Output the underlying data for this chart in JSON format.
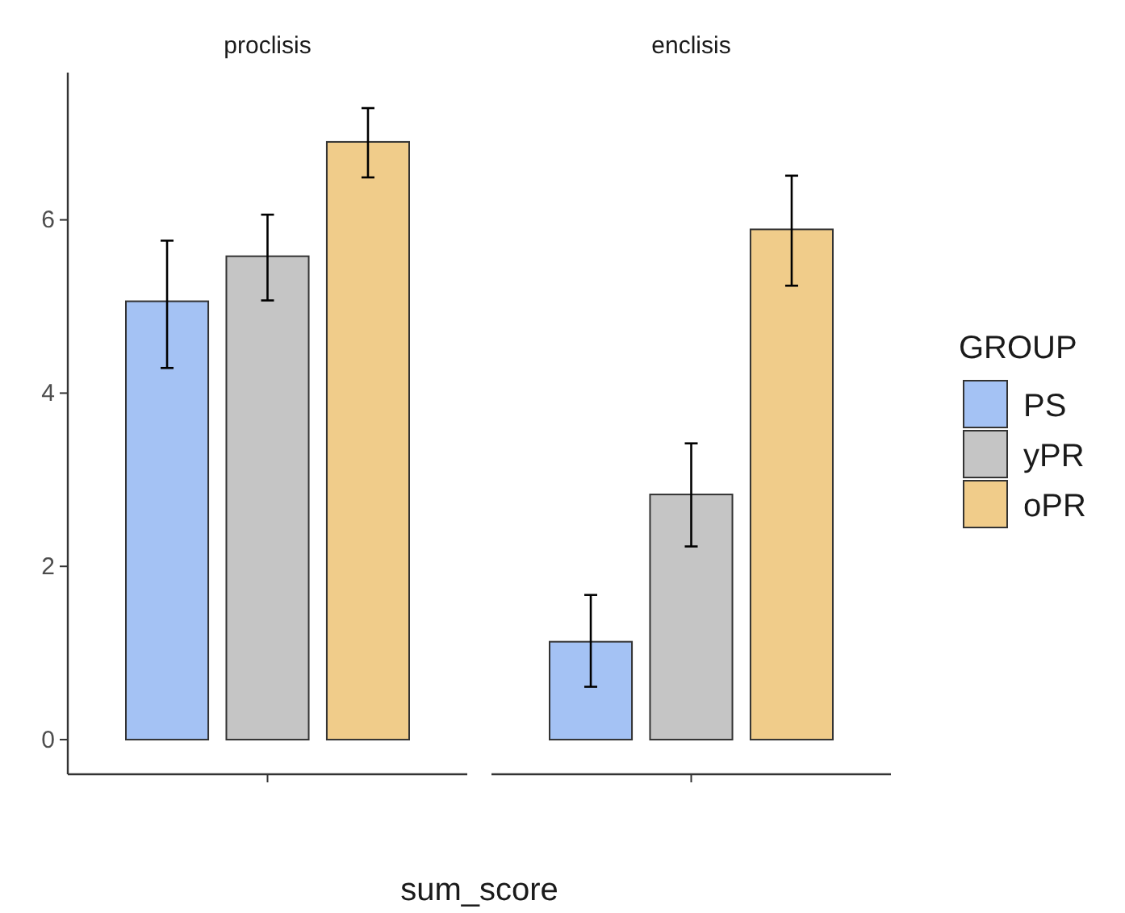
{
  "chart_data": {
    "type": "bar",
    "categories": [
      "proclisis",
      "enclisis"
    ],
    "xlabel": "sum_score",
    "ylim": [
      -0.4,
      7.7
    ],
    "yticks": [
      0,
      2,
      4,
      6
    ],
    "legend": "right",
    "legend_title": "GROUP",
    "series": [
      {
        "name": "PS",
        "color": "#a4c2f4",
        "values": [
          5.06,
          1.13
        ],
        "errors": [
          [
            4.29,
            5.76
          ],
          [
            0.61,
            1.67
          ]
        ]
      },
      {
        "name": "yPR",
        "color": "#c5c5c5",
        "values": [
          5.58,
          2.83
        ],
        "errors": [
          [
            5.07,
            6.06
          ],
          [
            2.23,
            3.42
          ]
        ]
      },
      {
        "name": "oPR",
        "color": "#f0cc8a",
        "values": [
          6.9,
          5.89
        ],
        "errors": [
          [
            6.49,
            7.29
          ],
          [
            5.24,
            6.51
          ]
        ]
      }
    ]
  }
}
